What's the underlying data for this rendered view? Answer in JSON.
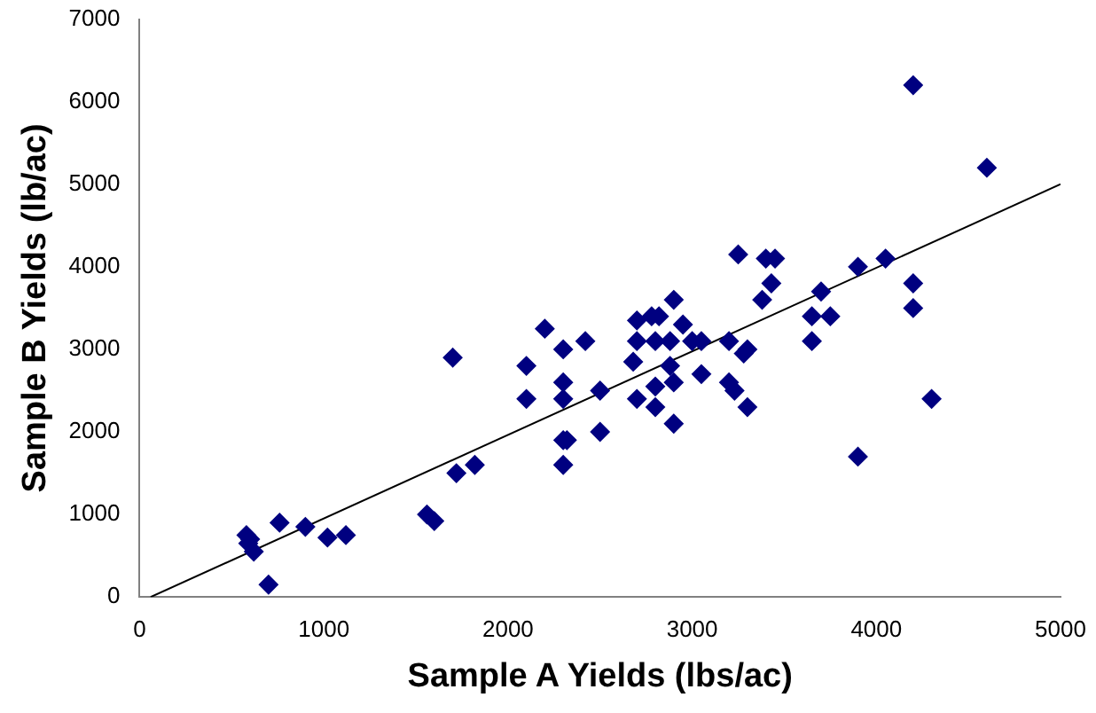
{
  "chart_data": {
    "type": "scatter",
    "xlabel": "Sample A Yields (lbs/ac)",
    "ylabel": "Sample B Yields (lb/ac)",
    "xlim": [
      0,
      5000
    ],
    "xticks": [
      0,
      1000,
      2000,
      3000,
      4000,
      5000
    ],
    "ylim": [
      0,
      7000
    ],
    "yticks": [
      0,
      1000,
      2000,
      3000,
      4000,
      5000,
      6000,
      7000
    ],
    "grid": false,
    "legend": false,
    "marker": "diamond",
    "series": [
      {
        "color": "#000080",
        "x": [
          580,
          600,
          590,
          620,
          700,
          760,
          900,
          1020,
          1120,
          1560,
          1600,
          1700,
          1720,
          1820,
          2100,
          2100,
          2200,
          2300,
          2300,
          2300,
          2300,
          2320,
          2300,
          2420,
          2500,
          2500,
          2680,
          2700,
          2700,
          2700,
          2780,
          2800,
          2800,
          2800,
          2820,
          2880,
          2880,
          2900,
          2900,
          2900,
          2950,
          3000,
          3050,
          3050,
          3200,
          3200,
          3250,
          3230,
          3280,
          3300,
          3300,
          3380,
          3400,
          3430,
          3450,
          3650,
          3650,
          3700,
          3750,
          3900,
          3900,
          4050,
          4200,
          4200,
          4200,
          4300,
          4600
        ],
        "values": [
          750,
          700,
          650,
          550,
          150,
          900,
          850,
          720,
          750,
          1000,
          920,
          2900,
          1500,
          1600,
          2800,
          2400,
          3250,
          3000,
          2600,
          2400,
          1900,
          1900,
          1600,
          3100,
          2500,
          2000,
          2850,
          3350,
          3100,
          2400,
          3400,
          3100,
          2550,
          2300,
          3400,
          3100,
          2800,
          3600,
          2600,
          2100,
          3300,
          3100,
          3100,
          2700,
          3100,
          2600,
          4150,
          2500,
          2950,
          3000,
          2300,
          3600,
          4100,
          3800,
          4100,
          3100,
          3400,
          3700,
          3400,
          1700,
          4000,
          4100,
          6200,
          3800,
          3500,
          2400,
          5200
        ]
      },
      {
        "type": "line",
        "color": "#000000",
        "marker": "none",
        "x": [
          60,
          5000
        ],
        "values": [
          0,
          5000
        ]
      }
    ]
  }
}
